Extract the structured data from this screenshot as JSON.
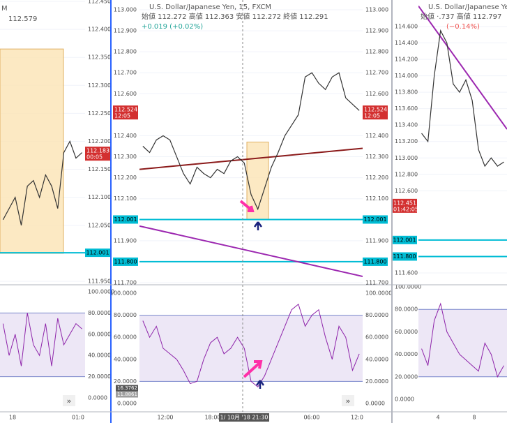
{
  "panels": [
    {
      "header": {
        "symbol": "M",
        "price": "112.579"
      },
      "price": {
        "ylim": [
          111.95,
          112.45
        ],
        "yticks": [
          {
            "value": 112.45,
            "label": "112.450"
          },
          {
            "value": 112.4,
            "label": "112.400"
          },
          {
            "value": 112.35,
            "label": "112.350"
          },
          {
            "value": 112.3,
            "label": "112.300"
          },
          {
            "value": 112.25,
            "label": "112.250"
          },
          {
            "value": 112.2,
            "label": "112.200"
          },
          {
            "value": 112.15,
            "label": "112.150"
          },
          {
            "value": 112.1,
            "label": "112.100"
          },
          {
            "value": 112.05,
            "label": "112.050"
          },
          {
            "value": 111.95,
            "label": "111.950"
          }
        ],
        "closes": [
          112.06,
          112.08,
          112.1,
          112.05,
          112.12,
          112.13,
          112.1,
          112.14,
          112.12,
          112.08,
          112.18,
          112.2,
          112.17,
          112.18
        ],
        "color": "#333333",
        "box": {
          "top": 112.365,
          "bottom": 112.0
        },
        "levels": [
          {
            "value": 112.001,
            "color": "#00bcd4"
          }
        ],
        "lines": [],
        "last": {
          "value": 112.183,
          "time": "00:05"
        }
      },
      "indicator": {
        "ylim": [
          0,
          100
        ],
        "yticks": [
          {
            "value": 100,
            "label": "100.0000"
          },
          {
            "value": 80,
            "label": "80.0000"
          },
          {
            "value": 60,
            "label": "60.0000"
          },
          {
            "value": 40,
            "label": "40.0000"
          },
          {
            "value": 20,
            "label": "20.0000"
          },
          {
            "value": 0,
            "label": "0.0000"
          }
        ],
        "bands": [
          20,
          80
        ],
        "values": [
          70,
          40,
          60,
          30,
          80,
          50,
          40,
          70,
          30,
          75,
          50,
          60,
          70,
          65
        ],
        "tags": []
      },
      "time_labels": [
        "18",
        "01:0"
      ]
    },
    {
      "header": {
        "title": "U.S. Dollar/Japanese Yen, 15, FXCM",
        "ohlc": "始値 112.272 高値 112.363 安値 112.272 終値 112.291",
        "change": "+0.019 (+0.02%)"
      },
      "price": {
        "ylim": [
          111.7,
          113.0
        ],
        "yticks": [
          {
            "value": 113.0,
            "label": "113.000"
          },
          {
            "value": 112.9,
            "label": "112.900"
          },
          {
            "value": 112.8,
            "label": "112.800"
          },
          {
            "value": 112.7,
            "label": "112.700"
          },
          {
            "value": 112.6,
            "label": "112.600"
          },
          {
            "value": 112.4,
            "label": "112.400"
          },
          {
            "value": 112.3,
            "label": "112.300"
          },
          {
            "value": 112.2,
            "label": "112.200"
          },
          {
            "value": 112.1,
            "label": "112.100"
          },
          {
            "value": 111.9,
            "label": "111.900"
          },
          {
            "value": 111.7,
            "label": "111.700"
          }
        ],
        "closes": [
          112.35,
          112.32,
          112.38,
          112.4,
          112.38,
          112.3,
          112.22,
          112.17,
          112.25,
          112.22,
          112.2,
          112.24,
          112.22,
          112.28,
          112.3,
          112.27,
          112.12,
          112.05,
          112.15,
          112.25,
          112.32,
          112.4,
          112.45,
          112.5,
          112.68,
          112.7,
          112.65,
          112.62,
          112.68,
          112.7,
          112.58,
          112.55,
          112.52
        ],
        "color": "#333333",
        "box": {
          "top": 112.37,
          "bottom": 112.0
        },
        "levels": [
          {
            "value": 112.001,
            "color": "#00bcd4"
          },
          {
            "value": 111.8,
            "label": "111.800",
            "color": "#00bcd4"
          }
        ],
        "lines": [
          {
            "from": 112.24,
            "to": 112.34,
            "color": "#8b1a1a"
          },
          {
            "from": 111.97,
            "to": 111.73,
            "color": "#9c27b0"
          }
        ],
        "last": {
          "value": 112.524,
          "time": "12:05"
        }
      },
      "indicator": {
        "ylim": [
          0,
          100
        ],
        "yticks": [
          {
            "value": 100,
            "label": "100.0000"
          },
          {
            "value": 80,
            "label": "80.0000"
          },
          {
            "value": 60,
            "label": "60.0000"
          },
          {
            "value": 40,
            "label": "40.0000"
          },
          {
            "value": 20,
            "label": "20.0000"
          },
          {
            "value": 0,
            "label": "0.0000"
          }
        ],
        "bands": [
          20,
          80
        ],
        "values": [
          75,
          60,
          70,
          50,
          45,
          40,
          30,
          18,
          20,
          40,
          55,
          60,
          45,
          50,
          60,
          50,
          20,
          15,
          25,
          40,
          55,
          70,
          85,
          90,
          70,
          80,
          85,
          60,
          40,
          70,
          60,
          30,
          45
        ],
        "tags": [
          16.3762,
          11.8861
        ]
      },
      "time_labels": [
        "12:00",
        "18:00",
        "1/ 10月 '18 21:30",
        "06:00",
        "12:0"
      ]
    },
    {
      "header": {
        "title": "U.S. Dollar/Japanese Yen",
        "ohlc": "始値 ·.737 高値 112.797",
        "change": "(−0.14%)"
      },
      "price": {
        "ylim": [
          111.6,
          114.6
        ],
        "yticks": [
          {
            "value": 114.6,
            "label": "114.600"
          },
          {
            "value": 114.4,
            "label": "114.400"
          },
          {
            "value": 114.2,
            "label": "114.200"
          },
          {
            "value": 114,
            "label": "114.000"
          },
          {
            "value": 113.8,
            "label": "113.800"
          },
          {
            "value": 113.6,
            "label": "113.600"
          },
          {
            "value": 113.4,
            "label": "113.400"
          },
          {
            "value": 113.2,
            "label": "113.200"
          },
          {
            "value": 113,
            "label": "113.000"
          },
          {
            "value": 112.8,
            "label": "112.800"
          },
          {
            "value": 112.6,
            "label": "112.600"
          },
          {
            "value": 111.6,
            "label": "111.600"
          }
        ],
        "closes": [
          113.3,
          113.2,
          114.0,
          114.55,
          114.4,
          113.9,
          113.8,
          113.95,
          113.7,
          113.1,
          112.9,
          113.0,
          112.9,
          112.95
        ],
        "color": "#333333",
        "levels": [
          {
            "value": 112.001,
            "color": "#00bcd4"
          },
          {
            "value": 111.8,
            "label": "111.800",
            "color": "#00bcd4"
          }
        ],
        "lines": [
          {
            "from": 114.85,
            "to": 113.35,
            "color": "#9c27b0"
          }
        ],
        "last": {
          "value": 112.451,
          "time": "01:42:05"
        }
      },
      "indicator": {
        "ylim": [
          0,
          100
        ],
        "yticks": [
          {
            "value": 100,
            "label": "100.0000"
          },
          {
            "value": 80,
            "label": "80.0000"
          },
          {
            "value": 60,
            "label": "60.0000"
          },
          {
            "value": 40,
            "label": "40.0000"
          },
          {
            "value": 20,
            "label": "20.0000"
          },
          {
            "value": 0,
            "label": "0.0000"
          }
        ],
        "bands": [
          20,
          80
        ],
        "values": [
          45,
          30,
          70,
          85,
          60,
          50,
          40,
          35,
          30,
          25,
          50,
          40,
          20,
          30
        ],
        "tags": []
      },
      "time_labels": [
        "4",
        "8"
      ]
    }
  ]
}
